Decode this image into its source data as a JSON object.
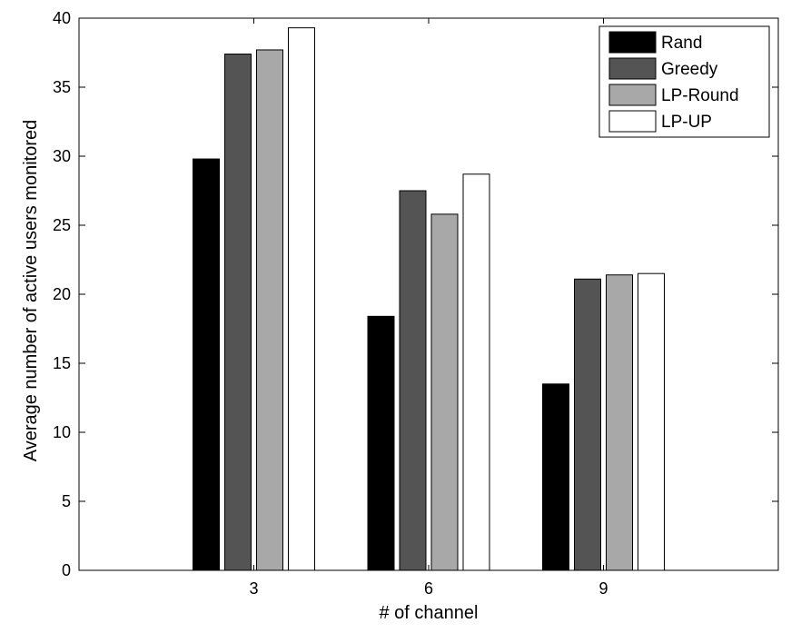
{
  "chart_data": {
    "type": "bar",
    "title": "",
    "xlabel": "# of channel",
    "ylabel": "Average number of active users monitored",
    "categories": [
      "3",
      "6",
      "9"
    ],
    "ylim": [
      0,
      40
    ],
    "yticks": [
      "0",
      "5",
      "10",
      "15",
      "20",
      "25",
      "30",
      "35",
      "40"
    ],
    "legend_position": "top-right",
    "series": [
      {
        "name": "Rand",
        "color": "#000000",
        "values": [
          29.8,
          18.4,
          13.5
        ]
      },
      {
        "name": "Greedy",
        "color": "#545454",
        "values": [
          37.4,
          27.5,
          21.1
        ]
      },
      {
        "name": "LP-Round",
        "color": "#a8a8a8",
        "values": [
          37.7,
          25.8,
          21.4
        ]
      },
      {
        "name": "LP-UP",
        "color": "#ffffff",
        "values": [
          39.3,
          28.7,
          21.5
        ]
      }
    ]
  }
}
